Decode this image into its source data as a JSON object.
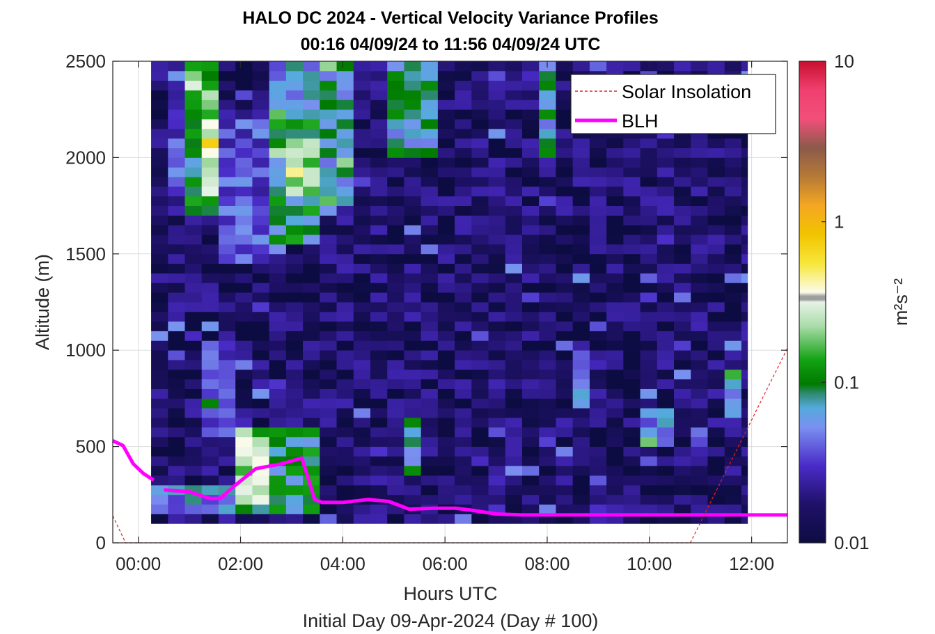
{
  "chart_data": {
    "type": "heatmap",
    "title_line1": "HALO DC 2024 - Vertical Velocity Variance Profiles",
    "title_line2": "00:16 04/09/24 to 11:56 04/09/24  UTC",
    "xlabel": "Hours UTC",
    "xlabel2": "Initial Day 09-Apr-2024 (Day # 100)",
    "ylabel": "Altitude (m)",
    "xlim": [
      -0.5,
      12.7
    ],
    "ylim": [
      0,
      2500
    ],
    "x_ticks": [
      {
        "value": 0,
        "label": "00:00"
      },
      {
        "value": 2,
        "label": "02:00"
      },
      {
        "value": 4,
        "label": "04:00"
      },
      {
        "value": 6,
        "label": "06:00"
      },
      {
        "value": 8,
        "label": "08:00"
      },
      {
        "value": 10,
        "label": "10:00"
      },
      {
        "value": 12,
        "label": "12:00"
      }
    ],
    "y_ticks": [
      {
        "value": 0,
        "label": "0"
      },
      {
        "value": 500,
        "label": "500"
      },
      {
        "value": 1000,
        "label": "1000"
      },
      {
        "value": 1500,
        "label": "1500"
      },
      {
        "value": 2000,
        "label": "2000"
      },
      {
        "value": 2500,
        "label": "2500"
      }
    ],
    "grid": true,
    "legend_position": "top-right",
    "legend": [
      {
        "name": "Solar Insolation",
        "style": "dashed",
        "color": "#e32222"
      },
      {
        "name": "BLH",
        "style": "solid",
        "color": "#ff00ff"
      }
    ],
    "colorbar": {
      "label": "m²s⁻²",
      "scale": "log",
      "range": [
        0.01,
        10
      ],
      "ticks": [
        {
          "value": 0.01,
          "label": "0.01"
        },
        {
          "value": 0.1,
          "label": "0.1"
        },
        {
          "value": 1,
          "label": "1"
        },
        {
          "value": 10,
          "label": "10"
        }
      ]
    },
    "heatmap": {
      "x_range_hours": [
        0.25,
        11.92
      ],
      "y_range_m": [
        100,
        2500
      ],
      "x_step_hours": 0.33,
      "y_step_m": 50,
      "regions": [
        {
          "x": [
            1.0,
            1.5
          ],
          "y": [
            1700,
            2500
          ],
          "value": 0.1
        },
        {
          "x": [
            1.25,
            1.5
          ],
          "y": [
            1800,
            2350
          ],
          "value": 0.25
        },
        {
          "x": [
            2.7,
            3.6
          ],
          "y": [
            1550,
            2200
          ],
          "value": 0.1
        },
        {
          "x": [
            3.0,
            3.5
          ],
          "y": [
            1800,
            2100
          ],
          "value": 0.2
        },
        {
          "x": [
            1.5,
            2.7
          ],
          "y": [
            1450,
            2200
          ],
          "value": 0.04
        },
        {
          "x": [
            0.5,
            1.0
          ],
          "y": [
            1800,
            2300
          ],
          "value": 0.04
        },
        {
          "x": [
            2.7,
            3.6
          ],
          "y": [
            2200,
            2500
          ],
          "value": 0.06
        },
        {
          "x": [
            3.6,
            4.3
          ],
          "y": [
            1750,
            2500
          ],
          "value": 0.08
        },
        {
          "x": [
            1.3,
            2.0
          ],
          "y": [
            550,
            1050
          ],
          "value": 0.035
        },
        {
          "x": [
            1.8,
            3.5
          ],
          "y": [
            150,
            600
          ],
          "value": 0.1
        },
        {
          "x": [
            2.0,
            2.5
          ],
          "y": [
            200,
            550
          ],
          "value": 0.25
        },
        {
          "x": [
            0.25,
            1.8
          ],
          "y": [
            150,
            300
          ],
          "value": 0.06
        },
        {
          "x": [
            5.2,
            5.5
          ],
          "y": [
            350,
            650
          ],
          "value": 0.08
        },
        {
          "x": [
            5.0,
            5.9
          ],
          "y": [
            2000,
            2500
          ],
          "value": 0.08
        },
        {
          "x": [
            7.7,
            8.1
          ],
          "y": [
            2000,
            2500
          ],
          "value": 0.08
        },
        {
          "x": [
            8.6,
            8.9
          ],
          "y": [
            700,
            1000
          ],
          "value": 0.06
        },
        {
          "x": [
            9.8,
            10.4
          ],
          "y": [
            500,
            700
          ],
          "value": 0.06
        },
        {
          "x": [
            11.6,
            11.92
          ],
          "y": [
            650,
            900
          ],
          "value": 0.05
        },
        {
          "x": [
            10.7,
            10.9
          ],
          "y": [
            1650,
            1800
          ],
          "value": 0.07
        }
      ],
      "background_value": 0.012,
      "missing": [
        {
          "x": [
            10.65,
            10.95
          ],
          "y": [
            1050,
            1100
          ]
        }
      ]
    },
    "series": [
      {
        "name": "BLH",
        "x": [
          -0.5,
          -0.3,
          -0.1,
          0.1,
          0.3
        ],
        "y": [
          530,
          505,
          410,
          360,
          325
        ]
      },
      {
        "name": "BLH",
        "x": [
          0.5,
          1.0,
          1.4,
          1.6,
          1.9,
          2.3,
          2.8,
          3.2,
          3.45,
          3.6,
          4.0,
          4.5,
          4.9,
          5.3,
          5.8,
          6.2,
          6.5,
          7.0,
          7.5,
          8.0,
          9.0,
          10.0,
          11.0,
          12.0,
          12.7
        ],
        "y": [
          275,
          265,
          230,
          230,
          300,
          385,
          410,
          440,
          225,
          210,
          210,
          225,
          215,
          175,
          180,
          180,
          170,
          150,
          145,
          145,
          145,
          145,
          145,
          145,
          145
        ]
      },
      {
        "name": "Solar Insolation",
        "x": [
          -0.5,
          -0.25,
          10.8,
          12.7
        ],
        "y": [
          140,
          0,
          0,
          1010
        ]
      }
    ]
  }
}
